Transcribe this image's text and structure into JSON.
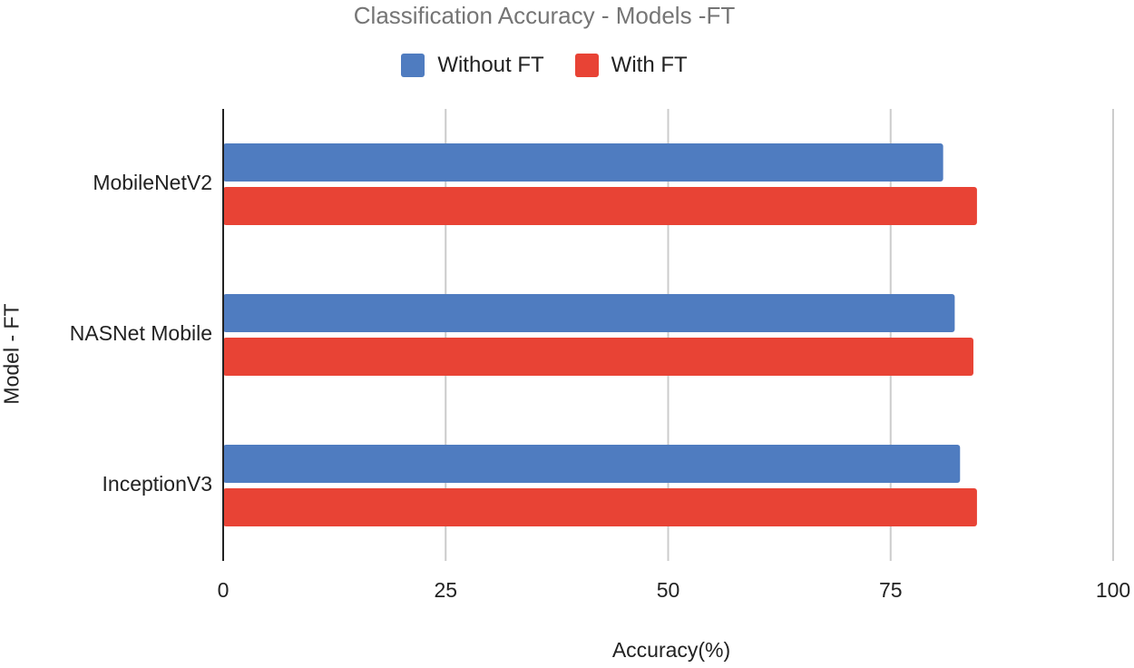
{
  "chart_data": {
    "type": "bar",
    "orientation": "horizontal",
    "title": "Classification Accuracy - Models -FT",
    "xlabel": "Accuracy(%)",
    "ylabel": "Model - FT",
    "categories": [
      "MobileNetV2",
      "NASNet Mobile",
      "InceptionV3"
    ],
    "series": [
      {
        "name": "Without FT",
        "color": "#4f7cc0",
        "values": [
          80.9,
          82.2,
          82.8
        ]
      },
      {
        "name": "With FT",
        "color": "#e84335",
        "values": [
          84.7,
          84.3,
          84.7
        ]
      }
    ],
    "xlim": [
      0,
      100
    ],
    "xticks": [
      0,
      25,
      50,
      75,
      100
    ],
    "grid": true,
    "legend_position": "top"
  }
}
